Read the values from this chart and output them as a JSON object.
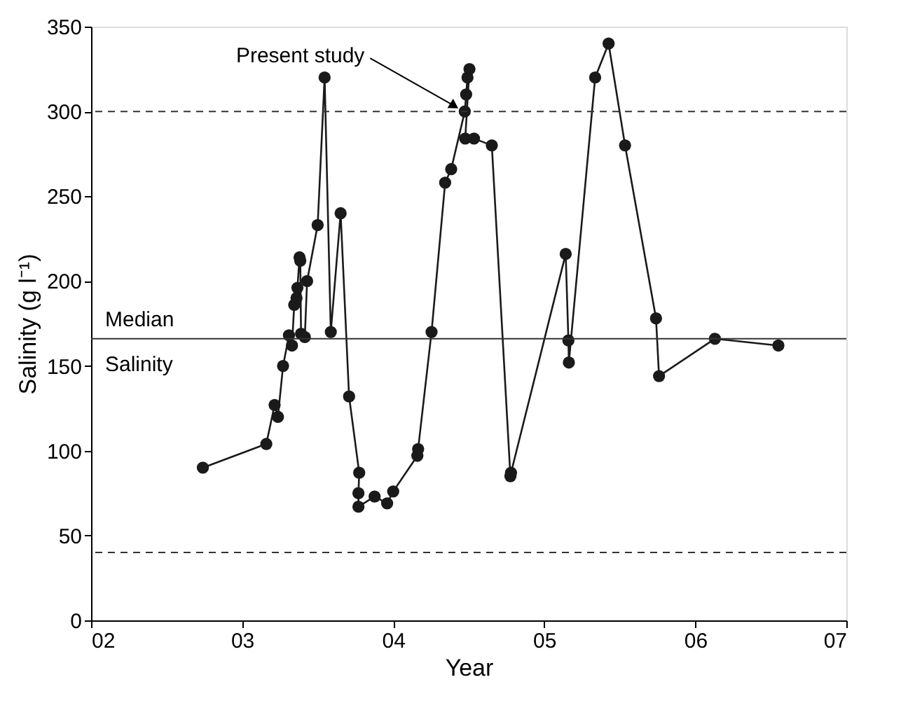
{
  "chart_data": {
    "type": "line",
    "xlabel": "Year",
    "ylabel": "Salinity (g l⁻¹)",
    "x": [
      2.74,
      3.16,
      3.215,
      3.237,
      3.271,
      3.31,
      3.33,
      3.345,
      3.36,
      3.366,
      3.38,
      3.385,
      3.39,
      3.415,
      3.43,
      3.5,
      3.546,
      3.587,
      3.652,
      3.708,
      3.775,
      3.77,
      3.77,
      3.877,
      3.96,
      4.0,
      4.16,
      4.165,
      4.254,
      4.344,
      4.384,
      4.474,
      4.483,
      4.492,
      4.505,
      4.477,
      4.535,
      4.653,
      4.776,
      4.78,
      5.142,
      5.16,
      5.163,
      5.337,
      5.426,
      5.535,
      5.74,
      5.76,
      6.13,
      6.55
    ],
    "series": [
      {
        "color": "#1a1a1a",
        "values": [
          90,
          104,
          127,
          120,
          150,
          168,
          162,
          186,
          190,
          196,
          214,
          212,
          169,
          167,
          200,
          233,
          320,
          170,
          240,
          132,
          87,
          75,
          67,
          73,
          69,
          76,
          97,
          101,
          170,
          258,
          266,
          300,
          310,
          320,
          325,
          284,
          284,
          280,
          85,
          87,
          216,
          165,
          152,
          320,
          340,
          280,
          178,
          144,
          166,
          162
        ]
      }
    ],
    "marker": "circle",
    "line_style": "solid",
    "xlim": [
      2,
      7
    ],
    "xticks": [
      {
        "value": 2,
        "label": "02"
      },
      {
        "value": 3,
        "label": "03"
      },
      {
        "value": 4,
        "label": "04"
      },
      {
        "value": 5,
        "label": "05"
      },
      {
        "value": 6,
        "label": "06"
      },
      {
        "value": 7,
        "label": "07"
      }
    ],
    "ylim": [
      0,
      350
    ],
    "yticks": [
      0,
      50,
      100,
      150,
      200,
      250,
      300,
      350
    ],
    "ref_lines": [
      {
        "axis": "y",
        "value": 300,
        "line_style": "dashed"
      },
      {
        "axis": "y",
        "value": 40,
        "line_style": "dashed"
      },
      {
        "axis": "y",
        "value": 166,
        "line_style": "solid",
        "label": "Median\nSalinity"
      }
    ],
    "annotations": [
      {
        "text": "Present study",
        "x": 4.46,
        "y": 300
      }
    ],
    "grid": false
  }
}
